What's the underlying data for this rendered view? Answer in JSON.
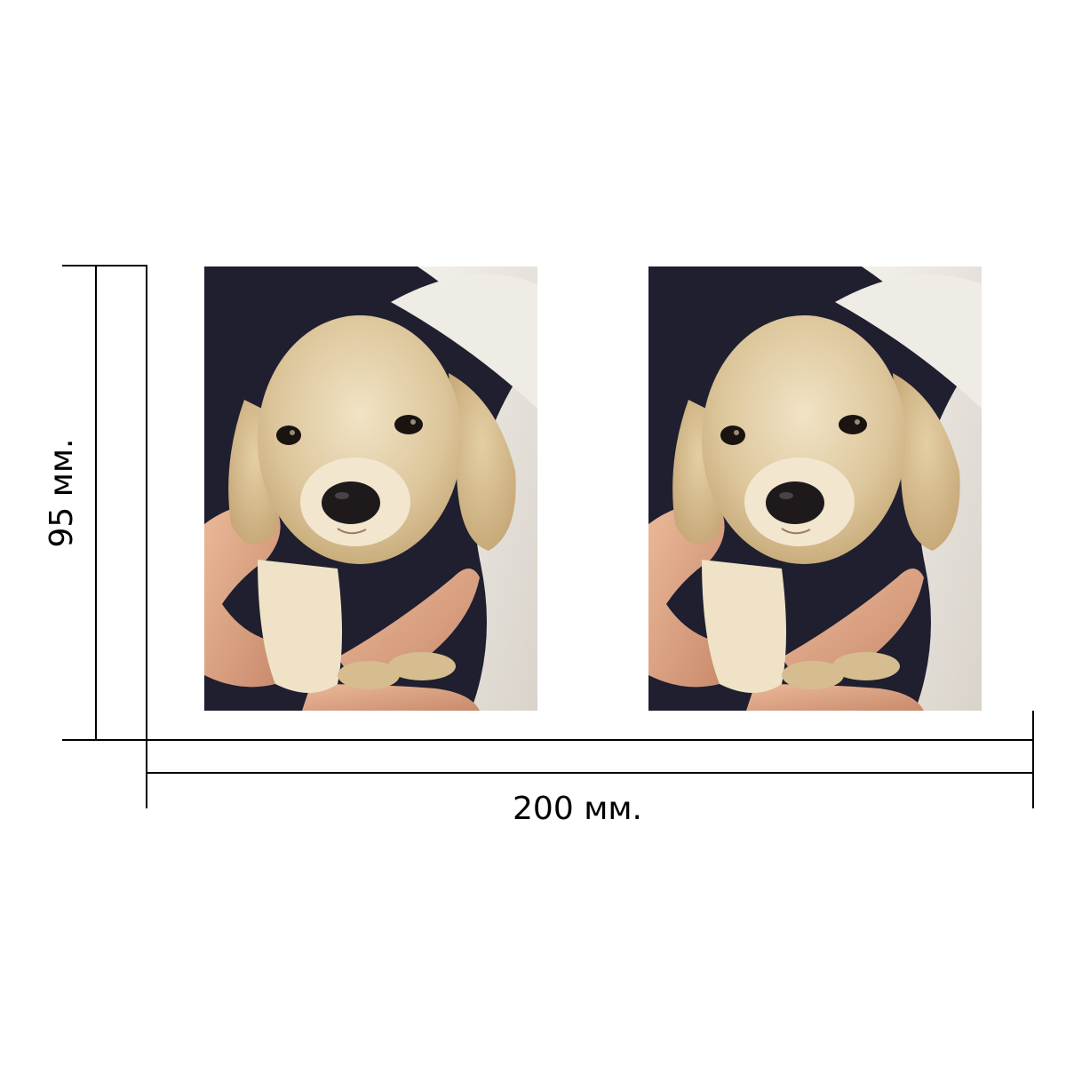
{
  "dimensions": {
    "width_label": "200 мм.",
    "height_label": "95 мм."
  },
  "photos": [
    {
      "subject": "puppy-photo"
    },
    {
      "subject": "puppy-photo"
    }
  ],
  "colors": {
    "background": "#ffffff",
    "lines": "#000000",
    "puppy_fur": "#e2cfa8",
    "dark_background": "#1f1f30",
    "towel": "#ece8e2",
    "skin": "#e0a888"
  }
}
